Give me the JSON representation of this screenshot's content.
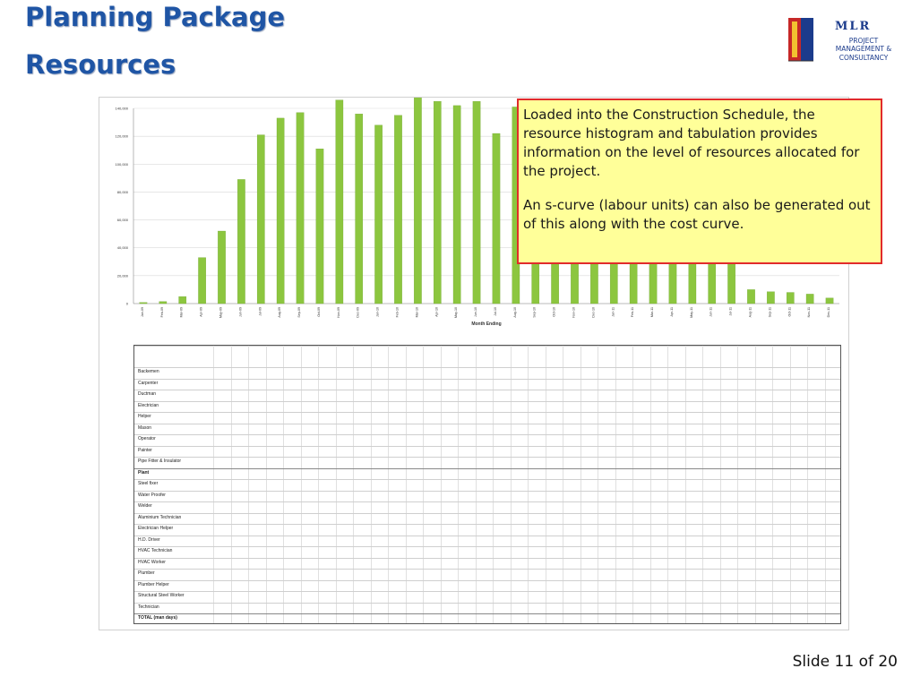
{
  "slide": {
    "title_line1": "Planning Package",
    "title_line2": "Resources",
    "slide_number": "Slide 11 of 20"
  },
  "logo": {
    "name": "MLR",
    "subtitle": "PROJECT MANAGEMENT & CONSULTANCY"
  },
  "callout": {
    "paragraph1": "Loaded into the Construction Schedule, the resource histogram and tabulation provides information on the level of resources allocated for the project.",
    "paragraph2": "An s-curve (labour units) can also be generated out of this along with the cost curve."
  },
  "colors": {
    "title": "#1f55a5",
    "bar": "#8cc63f",
    "callout_bg": "#ffff99",
    "callout_border": "#e12b2b"
  },
  "chart_data": {
    "type": "bar",
    "xlabel": "Month Ending",
    "ylim": [
      0,
      140000
    ],
    "yticks": [
      0,
      20000,
      40000,
      60000,
      80000,
      100000,
      120000,
      140000
    ],
    "ytick_labels": [
      "0",
      "20,000",
      "40,000",
      "60,000",
      "80,000",
      "100,000",
      "120,000",
      "140,000"
    ],
    "categories": [
      "Jan-09",
      "Feb-09",
      "Mar-09",
      "Apr-09",
      "May-09",
      "Jun-09",
      "Jul-09",
      "Aug-09",
      "Sep-09",
      "Oct-09",
      "Nov-09",
      "Dec-09",
      "Jan-10",
      "Feb-10",
      "Mar-10",
      "Apr-10",
      "May-10",
      "Jun-10",
      "Jul-10",
      "Aug-10",
      "Sep-10",
      "Oct-10",
      "Nov-10",
      "Dec-10",
      "Jan-11",
      "Feb-11",
      "Mar-11",
      "Apr-11",
      "May-11",
      "Jun-11",
      "Jul-11",
      "Aug-11",
      "Sep-11",
      "Oct-11",
      "Nov-11",
      "Dec-11"
    ],
    "values": [
      800,
      1500,
      5000,
      33000,
      52000,
      89000,
      121000,
      133000,
      137000,
      111000,
      146000,
      136000,
      128000,
      135000,
      148000,
      145000,
      142000,
      145000,
      122000,
      141000,
      140000,
      132000,
      127000,
      124000,
      120000,
      122000,
      124000,
      122000,
      115000,
      104000,
      99000,
      10000,
      8500,
      8000,
      6800,
      4000
    ]
  },
  "table": {
    "rows": [
      {
        "label": "Backemen",
        "bold": false
      },
      {
        "label": "Carpenter",
        "bold": false
      },
      {
        "label": "Ductman",
        "bold": false
      },
      {
        "label": "Electrician",
        "bold": false
      },
      {
        "label": "Helper",
        "bold": false
      },
      {
        "label": "Mason",
        "bold": false
      },
      {
        "label": "Operator",
        "bold": false
      },
      {
        "label": "Painter",
        "bold": false
      },
      {
        "label": "Pipe Fitter & Insulator",
        "bold": false
      },
      {
        "label": "Plant",
        "bold": true
      },
      {
        "label": "Steel fixer",
        "bold": false
      },
      {
        "label": "Water Proofer",
        "bold": false
      },
      {
        "label": "Welder",
        "bold": false
      },
      {
        "label": "Aluminium Technician",
        "bold": false
      },
      {
        "label": "Electrician Helper",
        "bold": false
      },
      {
        "label": "H.D. Driver",
        "bold": false
      },
      {
        "label": "HVAC Technician",
        "bold": false
      },
      {
        "label": "HVAC Worker",
        "bold": false
      },
      {
        "label": "Plumber",
        "bold": false
      },
      {
        "label": "Plumber Helper",
        "bold": false
      },
      {
        "label": "Structural Steel Worker",
        "bold": false
      },
      {
        "label": "Technician",
        "bold": false
      },
      {
        "label": "TOTAL (man days)",
        "bold": true
      }
    ]
  }
}
